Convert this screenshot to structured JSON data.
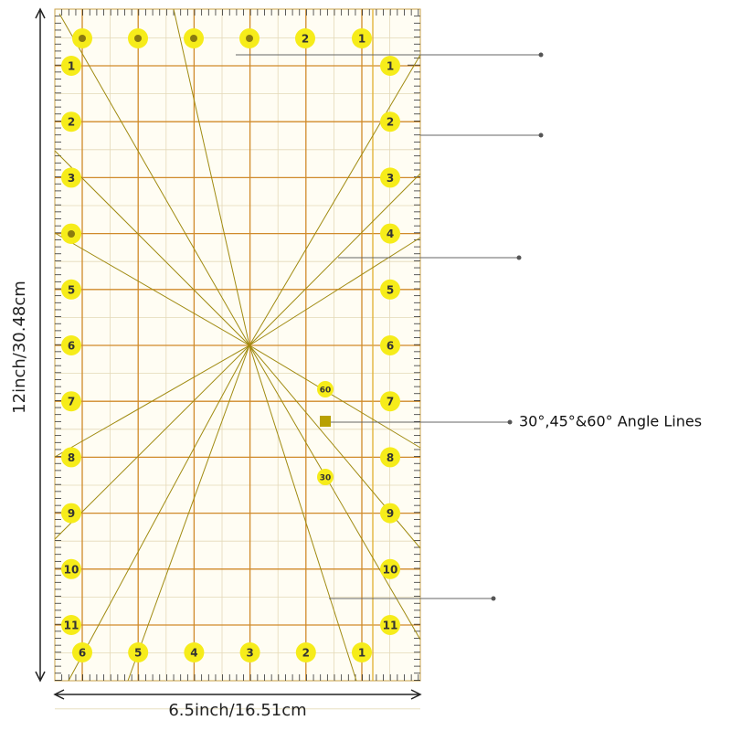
{
  "ruler": {
    "row_numbers": [
      "1",
      "2",
      "3",
      "4",
      "5",
      "6",
      "7",
      "8",
      "9",
      "10",
      "11"
    ],
    "bottom_numbers": [
      "6",
      "5",
      "4",
      "3",
      "2",
      "1"
    ],
    "top_numbers": [
      "2",
      "1"
    ],
    "angle_labels": [
      "60",
      "30"
    ]
  },
  "callout": "30°,45°&60° Angle Lines",
  "dimensions": {
    "height": "12inch/30.48cm",
    "width": "6.5inch/16.51cm"
  }
}
